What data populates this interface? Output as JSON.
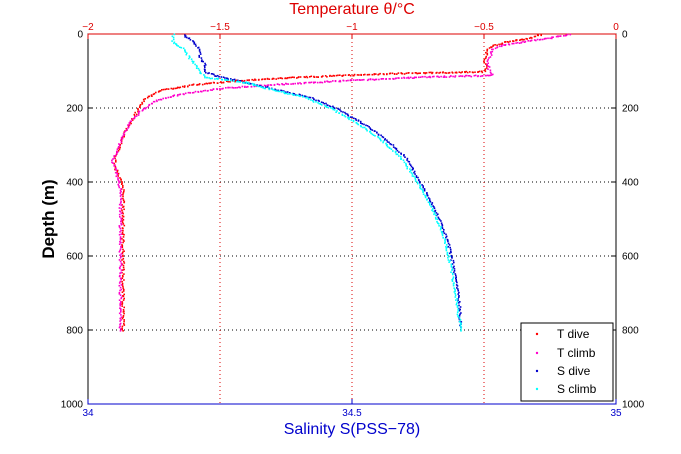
{
  "chart_data": {
    "type": "scatter",
    "axes": {
      "x_bottom": {
        "label": "Salinity S(PSS−78)",
        "range": [
          34,
          35
        ],
        "ticks": [
          34,
          34.5,
          35
        ],
        "tick_labels": [
          "34",
          "34.5",
          "35"
        ],
        "color": "#0000cc"
      },
      "x_top": {
        "label": "Temperature θ/°C",
        "range": [
          -2,
          0
        ],
        "ticks": [
          -2,
          -1.5,
          -1,
          -0.5,
          0
        ],
        "tick_labels": [
          "−2",
          "−1.5",
          "−1",
          "−0.5",
          "0"
        ],
        "color": "#dd0000"
      },
      "y": {
        "label": "Depth (m)",
        "range": [
          1000,
          0
        ],
        "inverted": true,
        "ticks": [
          0,
          200,
          400,
          600,
          800,
          1000
        ],
        "tick_labels": [
          "0",
          "200",
          "400",
          "600",
          "800",
          "1000"
        ],
        "right_tick_labels": [
          "0",
          "200",
          "400",
          "600",
          "800",
          "1000"
        ]
      }
    },
    "grid": "dotted",
    "legend": {
      "placement": "bottom-right",
      "entries": [
        "T dive",
        "T climb",
        "S dive",
        "S climb"
      ]
    },
    "series": [
      {
        "name": "T dive",
        "axis": "x_top",
        "color": "#ff0000",
        "x": [
          -0.29,
          -0.33,
          -0.42,
          -0.47,
          -0.49,
          -0.5,
          -0.49,
          -0.5,
          -0.85,
          -1.2,
          -1.45,
          -1.6,
          -1.72,
          -1.78,
          -1.81,
          -1.83,
          -1.86,
          -1.88,
          -1.9,
          -1.9,
          -1.88,
          -1.87,
          -1.87,
          -1.87,
          -1.87,
          -1.87,
          -1.87,
          -1.87
        ],
        "y": [
          0,
          10,
          20,
          30,
          40,
          70,
          90,
          100,
          105,
          115,
          125,
          135,
          150,
          170,
          195,
          225,
          260,
          300,
          330,
          360,
          390,
          420,
          450,
          500,
          550,
          600,
          700,
          800
        ]
      },
      {
        "name": "T climb",
        "axis": "x_top",
        "color": "#ff00cc",
        "x": [
          -0.18,
          -0.26,
          -0.36,
          -0.44,
          -0.47,
          -0.49,
          -0.48,
          -0.47,
          -0.75,
          -1.05,
          -1.3,
          -1.5,
          -1.65,
          -1.75,
          -1.8,
          -1.84,
          -1.87,
          -1.89,
          -1.91,
          -1.9,
          -1.89,
          -1.88,
          -1.88,
          -1.88,
          -1.88,
          -1.88,
          -1.88,
          -1.88
        ],
        "y": [
          0,
          10,
          20,
          30,
          40,
          80,
          100,
          110,
          115,
          125,
          135,
          145,
          160,
          180,
          205,
          235,
          270,
          310,
          340,
          360,
          390,
          420,
          450,
          500,
          550,
          600,
          700,
          800
        ]
      },
      {
        "name": "S dive",
        "axis": "x_bottom",
        "color": "#0000cc",
        "x": [
          34.18,
          34.2,
          34.21,
          34.21,
          34.22,
          34.22,
          34.24,
          34.3,
          34.36,
          34.42,
          34.47,
          34.52,
          34.56,
          34.6,
          34.62,
          34.645,
          34.665,
          34.68,
          34.69,
          34.7,
          34.705
        ],
        "y": [
          0,
          20,
          40,
          60,
          80,
          100,
          110,
          130,
          150,
          170,
          200,
          240,
          280,
          330,
          380,
          440,
          500,
          560,
          620,
          700,
          790
        ]
      },
      {
        "name": "S climb",
        "axis": "x_bottom",
        "color": "#00ffff",
        "x": [
          34.16,
          34.16,
          34.18,
          34.19,
          34.2,
          34.22,
          34.3,
          34.35,
          34.41,
          34.46,
          34.51,
          34.55,
          34.59,
          34.615,
          34.64,
          34.66,
          34.675,
          34.685,
          34.695,
          34.705
        ],
        "y": [
          0,
          20,
          40,
          60,
          80,
          115,
          130,
          150,
          170,
          200,
          240,
          280,
          330,
          380,
          440,
          500,
          560,
          620,
          700,
          800
        ]
      }
    ]
  }
}
